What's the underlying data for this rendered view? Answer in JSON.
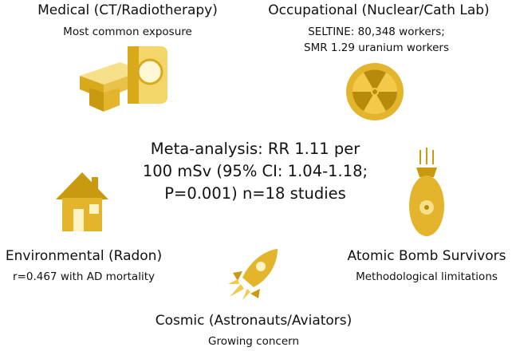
{
  "center": {
    "lines": [
      "Meta-analysis: RR 1.11 per",
      "100 mSv (95% CI: 1.04-1.18;",
      "P=0.001) n=18 studies"
    ]
  },
  "nodes": [
    {
      "title": "Medical (CT/Radiotherapy)",
      "lines": [
        "Most common exposure"
      ]
    },
    {
      "title": "Occupational (Nuclear/Cath Lab)",
      "lines": [
        "SELTINE: 80,348 workers;",
        "SMR 1.29 uranium workers"
      ]
    },
    {
      "title": "Environmental (Radon)",
      "lines": [
        "r=0.467 with AD mortality"
      ]
    },
    {
      "title": "Atomic Bomb Survivors",
      "lines": [
        "Methodological limitations"
      ]
    },
    {
      "title": "Cosmic (Astronauts/Aviators)",
      "lines": [
        "Growing concern"
      ]
    }
  ]
}
